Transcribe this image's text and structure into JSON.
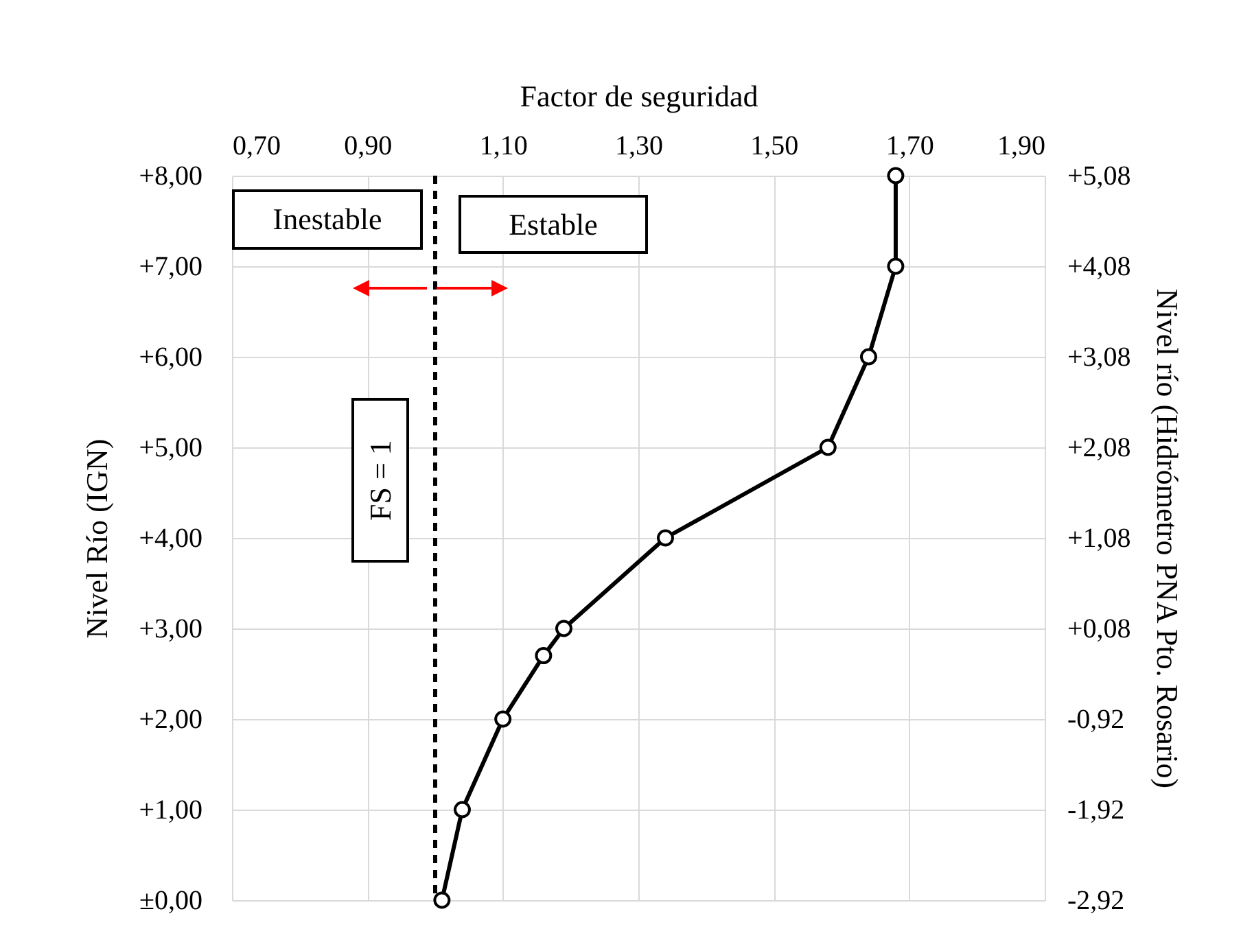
{
  "chart_data": {
    "type": "line",
    "xlabel": "Factor de seguridad",
    "ylabel": "Nivel Río (IGN)",
    "y2label": "Nivel río (Hidrómetro PNA Pto. Rosario)",
    "series": [
      {
        "color": "#000000",
        "x": [
          1.01,
          1.04,
          1.1,
          1.16,
          1.19,
          1.34,
          1.58,
          1.64,
          1.68,
          1.68
        ],
        "values": [
          0,
          1,
          2,
          2.7,
          3,
          4,
          5,
          6,
          7,
          8
        ]
      }
    ],
    "xlim": [
      0.7,
      1.9
    ],
    "xticks": [
      {
        "value": 0.7,
        "label": "0,70"
      },
      {
        "value": 0.9,
        "label": "0,90"
      },
      {
        "value": 1.1,
        "label": "1,10"
      },
      {
        "value": 1.3,
        "label": "1,30"
      },
      {
        "value": 1.5,
        "label": "1,50"
      },
      {
        "value": 1.7,
        "label": "1,70"
      },
      {
        "value": 1.9,
        "label": "1,90"
      }
    ],
    "ylim": [
      0,
      8
    ],
    "yticks": [
      {
        "value": 0,
        "label": "±0,00"
      },
      {
        "value": 1,
        "label": "+1,00"
      },
      {
        "value": 2,
        "label": "+2,00"
      },
      {
        "value": 3,
        "label": "+3,00"
      },
      {
        "value": 4,
        "label": "+4,00"
      },
      {
        "value": 5,
        "label": "+5,00"
      },
      {
        "value": 6,
        "label": "+6,00"
      },
      {
        "value": 7,
        "label": "+7,00"
      },
      {
        "value": 8,
        "label": "+8,00"
      }
    ],
    "y2lim": [
      -2.92,
      5.08
    ],
    "y2ticks": [
      {
        "value": -2.92,
        "label": "-2,92"
      },
      {
        "value": -1.92,
        "label": "-1,92"
      },
      {
        "value": -0.92,
        "label": "-0,92"
      },
      {
        "value": 0.08,
        "label": "+0,08"
      },
      {
        "value": 1.08,
        "label": "+1,08"
      },
      {
        "value": 2.08,
        "label": "+2,08"
      },
      {
        "value": 3.08,
        "label": "+3,08"
      },
      {
        "value": 4.08,
        "label": "+4,08"
      },
      {
        "value": 5.08,
        "label": "+5,08"
      }
    ],
    "grid": true,
    "marker": "circle",
    "line_style": "solid",
    "ref_lines": [
      {
        "axis": "x",
        "value": 1,
        "label": "FS = 1",
        "color": "#000000",
        "line_style": "dashed"
      }
    ],
    "annotations": [
      "Inestable",
      "Estable"
    ]
  }
}
